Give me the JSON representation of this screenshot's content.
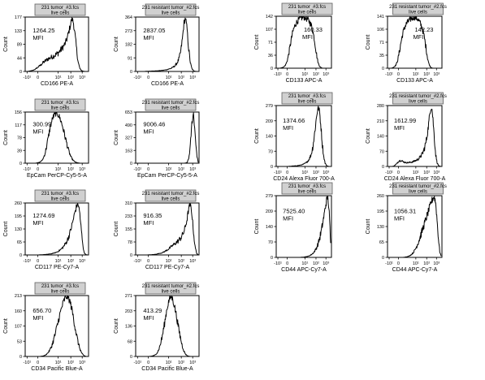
{
  "chart_data": [
    {
      "type": "histogram",
      "sample": "231 tumor_#3.fcs",
      "gate": "live cells",
      "mfi_value": "1264.25",
      "mfi_label": "MFI",
      "ylabel": "Count",
      "xlabel": "CD166 PE-A",
      "yticks": [
        "0",
        "44",
        "89",
        "133",
        "177"
      ],
      "xticks": [
        "-10¹",
        "0",
        "10¹",
        "10²",
        "10³"
      ],
      "mfi_pos": "upper-left",
      "profile": [
        0,
        0,
        1,
        2,
        3,
        5,
        8,
        12,
        16,
        20,
        25,
        30,
        34,
        38,
        42,
        44,
        47,
        50,
        53,
        56,
        60,
        65,
        71,
        78,
        86,
        95,
        110,
        130,
        152,
        177,
        160,
        120,
        70,
        30,
        10,
        3,
        1,
        0,
        0,
        0
      ]
    },
    {
      "type": "histogram",
      "sample": "231 resistant tumor_#2.fcs",
      "gate": "live cells",
      "mfi_value": "2837.05",
      "mfi_label": "MFI",
      "ylabel": "Count",
      "xlabel": "CD166 PE-A",
      "yticks": [
        "0",
        "91",
        "182",
        "273",
        "364"
      ],
      "xticks": [
        "-10¹",
        "0",
        "10¹",
        "10²",
        "10³"
      ],
      "mfi_pos": "upper-left",
      "profile": [
        0,
        0,
        0,
        0,
        0,
        0,
        1,
        1,
        2,
        2,
        3,
        3,
        4,
        4,
        5,
        6,
        7,
        8,
        10,
        12,
        15,
        18,
        22,
        28,
        36,
        48,
        65,
        90,
        140,
        220,
        330,
        364,
        280,
        150,
        60,
        20,
        5,
        1,
        0,
        0
      ]
    },
    {
      "type": "histogram",
      "sample": "231 tumor_#3.fcs",
      "gate": "live cells",
      "mfi_value": "160.33",
      "mfi_label": "MFI",
      "ylabel": "Count",
      "xlabel": "CD133 APC-A",
      "yticks": [
        "0",
        "36",
        "71",
        "107",
        "142"
      ],
      "xticks": [
        "-10¹",
        "0",
        "10¹",
        "10²",
        "10³"
      ],
      "mfi_pos": "upper-right",
      "profile": [
        0,
        0,
        0,
        1,
        2,
        4,
        8,
        16,
        30,
        50,
        72,
        92,
        108,
        118,
        126,
        131,
        135,
        138,
        140,
        142,
        141,
        139,
        136,
        132,
        126,
        118,
        104,
        84,
        58,
        32,
        14,
        5,
        2,
        0,
        0,
        0,
        0,
        0,
        0,
        0
      ]
    },
    {
      "type": "histogram",
      "sample": "231 resistant tumor_#2.fcs",
      "gate": "live cells",
      "mfi_value": "142.23",
      "mfi_label": "MFI",
      "ylabel": "Count",
      "xlabel": "CD133 APC-A",
      "yticks": [
        "0",
        "35",
        "71",
        "106",
        "141"
      ],
      "xticks": [
        "-10¹",
        "0",
        "10¹",
        "10²",
        "10³"
      ],
      "mfi_pos": "upper-right",
      "profile": [
        0,
        0,
        0,
        1,
        3,
        6,
        12,
        24,
        42,
        64,
        84,
        100,
        112,
        120,
        126,
        130,
        134,
        137,
        139,
        141,
        140,
        138,
        134,
        128,
        120,
        110,
        96,
        76,
        52,
        28,
        12,
        4,
        1,
        0,
        0,
        0,
        0,
        0,
        0,
        0
      ]
    },
    {
      "type": "histogram",
      "sample": "231 tumor_#3.fcs",
      "gate": "live cells",
      "mfi_value": "300.99",
      "mfi_label": "MFI",
      "ylabel": "Count",
      "xlabel": "EpCam PerCP-Cy5-5-A",
      "yticks": [
        "0",
        "39",
        "78",
        "117",
        "156"
      ],
      "xticks": [
        "-10¹",
        "0",
        "10¹",
        "10²",
        "10³"
      ],
      "mfi_pos": "upper-left",
      "profile": [
        0,
        0,
        0,
        0,
        0,
        0,
        0,
        1,
        2,
        4,
        8,
        16,
        30,
        52,
        78,
        104,
        126,
        142,
        150,
        156,
        152,
        144,
        132,
        116,
        96,
        76,
        56,
        38,
        24,
        14,
        8,
        4,
        2,
        1,
        0,
        0,
        0,
        0,
        0,
        0
      ]
    },
    {
      "type": "histogram",
      "sample": "231 resistant tumor_#2.fcs",
      "gate": "live cells",
      "mfi_value": "9006.46",
      "mfi_label": "MFI",
      "ylabel": "Count",
      "xlabel": "EpCam PerCP-Cy5-5-A",
      "yticks": [
        "0",
        "163",
        "327",
        "490",
        "653"
      ],
      "xticks": [
        "-10¹",
        "0",
        "10¹",
        "10²",
        "10³"
      ],
      "mfi_pos": "upper-left",
      "profile": [
        0,
        0,
        0,
        0,
        0,
        0,
        0,
        0,
        0,
        0,
        0,
        0,
        0,
        0,
        0,
        0,
        0,
        0,
        0,
        0,
        0,
        0,
        0,
        0,
        0,
        0,
        0,
        0,
        0,
        0,
        0,
        2,
        10,
        60,
        220,
        520,
        653,
        400,
        120,
        10
      ]
    },
    {
      "type": "histogram",
      "sample": "231 tumor_#3.fcs",
      "gate": "live cells",
      "mfi_value": "1374.66",
      "mfi_label": "MFI",
      "ylabel": "Count",
      "xlabel": "CD24 Alexa Fluor 700-A",
      "yticks": [
        "0",
        "70",
        "140",
        "209",
        "279"
      ],
      "xticks": [
        "-10¹",
        "0",
        "10¹",
        "10²",
        "10³"
      ],
      "mfi_pos": "upper-left",
      "profile": [
        0,
        0,
        0,
        0,
        0,
        0,
        0,
        0,
        0,
        1,
        1,
        2,
        2,
        3,
        3,
        4,
        5,
        6,
        8,
        10,
        13,
        17,
        22,
        30,
        42,
        60,
        90,
        135,
        190,
        245,
        279,
        250,
        180,
        100,
        45,
        15,
        5,
        1,
        0,
        0
      ]
    },
    {
      "type": "histogram",
      "sample": "231 resistant tumor_#2.fcs",
      "gate": "live cells",
      "mfi_value": "1612.99",
      "mfi_label": "MFI",
      "ylabel": "Count",
      "xlabel": "CD24 Alexa Fluor 700-A",
      "yticks": [
        "0",
        "70",
        "140",
        "210",
        "280"
      ],
      "xticks": [
        "-10¹",
        "0",
        "10¹",
        "10²",
        "10³"
      ],
      "mfi_pos": "upper-left",
      "profile": [
        0,
        0,
        0,
        0,
        2,
        6,
        12,
        20,
        26,
        28,
        26,
        22,
        20,
        18,
        18,
        18,
        19,
        20,
        22,
        24,
        27,
        30,
        34,
        40,
        48,
        58,
        72,
        92,
        120,
        160,
        210,
        265,
        280,
        220,
        130,
        55,
        18,
        5,
        1,
        0
      ]
    },
    {
      "type": "histogram",
      "sample": "231 tumor_#3.fcs",
      "gate": "live cells",
      "mfi_value": "1274.69",
      "mfi_label": "MFI",
      "ylabel": "Count",
      "xlabel": "CD117 PE-Cy7-A",
      "yticks": [
        "0",
        "65",
        "130",
        "195",
        "260"
      ],
      "xticks": [
        "-10¹",
        "0",
        "10¹",
        "10²",
        "10³"
      ],
      "mfi_pos": "upper-left",
      "profile": [
        0,
        0,
        0,
        0,
        0,
        0,
        0,
        0,
        0,
        1,
        1,
        2,
        2,
        3,
        4,
        5,
        6,
        8,
        10,
        13,
        17,
        22,
        28,
        36,
        46,
        58,
        74,
        94,
        120,
        150,
        185,
        220,
        250,
        260,
        210,
        120,
        40,
        8,
        1,
        0
      ]
    },
    {
      "type": "histogram",
      "sample": "231 resistant tumor_#2.fcs",
      "gate": "live cells",
      "mfi_value": "916.35",
      "mfi_label": "MFI",
      "ylabel": "Count",
      "xlabel": "CD117 PE-Cy7-A",
      "yticks": [
        "0",
        "78",
        "155",
        "233",
        "310"
      ],
      "xticks": [
        "-10¹",
        "0",
        "10¹",
        "10²",
        "10³"
      ],
      "mfi_pos": "upper-left",
      "profile": [
        0,
        0,
        0,
        0,
        0,
        0,
        0,
        0,
        1,
        1,
        2,
        3,
        4,
        6,
        8,
        10,
        13,
        17,
        22,
        28,
        34,
        42,
        50,
        58,
        66,
        74,
        82,
        92,
        104,
        120,
        142,
        175,
        220,
        280,
        310,
        250,
        140,
        50,
        10,
        1
      ]
    },
    {
      "type": "histogram",
      "sample": "231 tumor_#3.fcs",
      "gate": "live cells",
      "mfi_value": "7525.40",
      "mfi_label": "MFI",
      "ylabel": "Count",
      "xlabel": "CD44 APC-Cy7-A",
      "yticks": [
        "0",
        "70",
        "140",
        "209",
        "279"
      ],
      "xticks": [
        "-10¹",
        "0",
        "10¹",
        "10²",
        "10³"
      ],
      "mfi_pos": "upper-left",
      "profile": [
        0,
        0,
        0,
        0,
        0,
        0,
        0,
        0,
        0,
        0,
        0,
        0,
        0,
        0,
        0,
        0,
        0,
        0,
        1,
        1,
        2,
        3,
        4,
        6,
        9,
        13,
        18,
        25,
        35,
        48,
        65,
        88,
        115,
        148,
        185,
        225,
        260,
        279,
        200,
        60
      ]
    },
    {
      "type": "histogram",
      "sample": "231 resistant tumor_#2.fcs",
      "gate": "live cells",
      "mfi_value": "1056.31",
      "mfi_label": "MFI",
      "ylabel": "Count",
      "xlabel": "CD44 APC-Cy7-A",
      "yticks": [
        "0",
        "65",
        "130",
        "195",
        "260"
      ],
      "xticks": [
        "-10¹",
        "0",
        "10¹",
        "10²",
        "10³"
      ],
      "mfi_pos": "upper-left",
      "profile": [
        0,
        0,
        0,
        0,
        0,
        0,
        0,
        0,
        0,
        0,
        0,
        0,
        1,
        2,
        3,
        5,
        8,
        12,
        18,
        26,
        36,
        48,
        62,
        78,
        96,
        114,
        132,
        150,
        168,
        186,
        204,
        222,
        240,
        254,
        260,
        230,
        160,
        80,
        25,
        5
      ]
    },
    {
      "type": "histogram",
      "sample": "231 tumor_#3.fcs",
      "gate": "live cells",
      "mfi_value": "656.70",
      "mfi_label": "MFI",
      "ylabel": "Count",
      "xlabel": "CD34 Pacific Blue-A",
      "yticks": [
        "0",
        "53",
        "107",
        "160",
        "213"
      ],
      "xticks": [
        "-10¹",
        "0",
        "10¹",
        "10²",
        "10³"
      ],
      "mfi_pos": "upper-left",
      "profile": [
        0,
        0,
        0,
        0,
        0,
        0,
        0,
        0,
        0,
        0,
        1,
        2,
        4,
        8,
        14,
        22,
        34,
        50,
        70,
        92,
        116,
        140,
        162,
        182,
        198,
        210,
        213,
        206,
        190,
        166,
        136,
        104,
        74,
        48,
        28,
        14,
        6,
        2,
        0,
        0
      ]
    },
    {
      "type": "histogram",
      "sample": "231 resistant tumor_#2.fcs",
      "gate": "live cells",
      "mfi_value": "413.29",
      "mfi_label": "MFI",
      "ylabel": "Count",
      "xlabel": "CD34 Pacific Blue-A",
      "yticks": [
        "0",
        "68",
        "136",
        "203",
        "271"
      ],
      "xticks": [
        "-10¹",
        "0",
        "10¹",
        "10²",
        "10³"
      ],
      "mfi_pos": "upper-left",
      "profile": [
        0,
        0,
        0,
        0,
        0,
        0,
        0,
        0,
        0,
        1,
        2,
        4,
        8,
        16,
        30,
        52,
        82,
        118,
        160,
        205,
        240,
        262,
        271,
        255,
        228,
        192,
        152,
        112,
        76,
        46,
        24,
        10,
        4,
        1,
        0,
        0,
        0,
        0,
        0,
        0
      ]
    }
  ]
}
